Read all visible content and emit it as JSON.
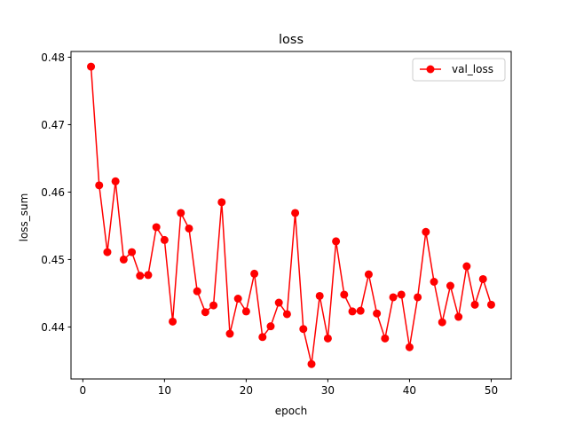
{
  "chart_data": {
    "type": "line",
    "title": "loss",
    "xlabel": "epoch",
    "ylabel": "loss_sum",
    "xlim": [
      -1.45,
      52.45
    ],
    "ylim": [
      0.43229,
      0.48085
    ],
    "xticks": [
      0,
      10,
      20,
      30,
      40,
      50
    ],
    "yticks": [
      0.44,
      0.45,
      0.46,
      0.47,
      0.48
    ],
    "xtick_labels": [
      "0",
      "10",
      "20",
      "30",
      "40",
      "50"
    ],
    "ytick_labels": [
      "0.44",
      "0.45",
      "0.46",
      "0.47",
      "0.48"
    ],
    "grid": false,
    "legend_position": "top-right",
    "series": [
      {
        "name": "val_loss",
        "color": "#ff0000",
        "marker": "circle",
        "x": [
          1,
          2,
          3,
          4,
          5,
          6,
          7,
          8,
          9,
          10,
          11,
          12,
          13,
          14,
          15,
          16,
          17,
          18,
          19,
          20,
          21,
          22,
          23,
          24,
          25,
          26,
          27,
          28,
          29,
          30,
          31,
          32,
          33,
          34,
          35,
          36,
          37,
          38,
          39,
          40,
          41,
          42,
          43,
          44,
          45,
          46,
          47,
          48,
          49,
          50
        ],
        "values": [
          0.4786,
          0.461,
          0.4511,
          0.4616,
          0.45,
          0.4511,
          0.4476,
          0.4477,
          0.4548,
          0.4529,
          0.4408,
          0.4569,
          0.4546,
          0.4453,
          0.4422,
          0.4432,
          0.4585,
          0.439,
          0.4442,
          0.4423,
          0.4479,
          0.4385,
          0.4401,
          0.4436,
          0.4419,
          0.4569,
          0.4397,
          0.4345,
          0.4446,
          0.4383,
          0.4527,
          0.4448,
          0.4423,
          0.4424,
          0.4478,
          0.442,
          0.4383,
          0.4444,
          0.4448,
          0.437,
          0.4444,
          0.4541,
          0.4467,
          0.4407,
          0.4461,
          0.4415,
          0.449,
          0.4433,
          0.4471,
          0.4433
        ]
      }
    ]
  }
}
